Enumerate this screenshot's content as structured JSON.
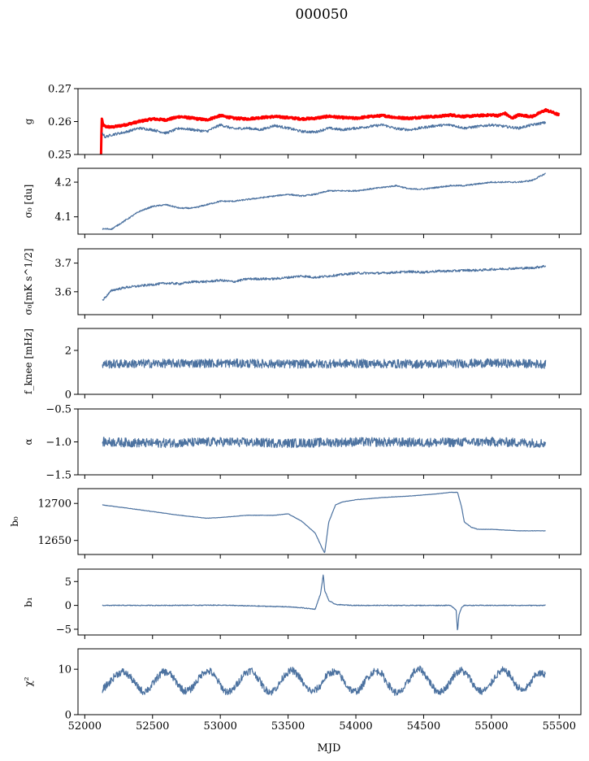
{
  "chart_data": {
    "title": "000050",
    "xlabel": "MJD",
    "xlim": [
      51950,
      55660
    ],
    "xticks": [
      52000,
      52500,
      53000,
      53500,
      54000,
      54500,
      55000,
      55500
    ],
    "xtick_labels": [
      "52000",
      "52500",
      "53000",
      "53500",
      "54000",
      "54500",
      "55000",
      "55500"
    ],
    "grid": false,
    "line_color": "#4c72a0",
    "panels": [
      {
        "type": "line",
        "ylabel": "g",
        "ylim": [
          0.25,
          0.27
        ],
        "yticks": [
          0.25,
          0.26,
          0.27
        ],
        "ytick_labels": [
          "0.25",
          "0.26",
          "0.27"
        ],
        "series": [
          {
            "color": "#ff0000",
            "width": 3,
            "noise": 0.0003,
            "x": [
              52120,
              52125,
              52135,
              52150,
              52200,
              52300,
              52400,
              52500,
              52600,
              52700,
              52800,
              52900,
              53000,
              53100,
              53200,
              53300,
              53400,
              53500,
              53600,
              53700,
              53800,
              53900,
              54000,
              54100,
              54200,
              54300,
              54400,
              54500,
              54600,
              54700,
              54800,
              54900,
              55000,
              55050,
              55100,
              55150,
              55200,
              55300,
              55350,
              55400,
              55450,
              55500
            ],
            "y": [
              0.25,
              0.261,
              0.259,
              0.2585,
              0.2583,
              0.259,
              0.26,
              0.2608,
              0.2605,
              0.2615,
              0.261,
              0.2605,
              0.2618,
              0.261,
              0.2608,
              0.2612,
              0.2615,
              0.2612,
              0.2608,
              0.261,
              0.2616,
              0.2612,
              0.261,
              0.2615,
              0.2618,
              0.2612,
              0.261,
              0.2614,
              0.2615,
              0.262,
              0.2615,
              0.2618,
              0.262,
              0.2618,
              0.2625,
              0.261,
              0.262,
              0.2615,
              0.2625,
              0.2635,
              0.2628,
              0.262
            ]
          },
          {
            "color": "#4c72a0",
            "width": 1.2,
            "noise": 0.0004,
            "x": [
              52130,
              52150,
              52200,
              52300,
              52400,
              52500,
              52600,
              52700,
              52800,
              52900,
              53000,
              53100,
              53200,
              53300,
              53400,
              53500,
              53600,
              53700,
              53800,
              53900,
              54000,
              54100,
              54200,
              54300,
              54400,
              54500,
              54600,
              54700,
              54800,
              54900,
              55000,
              55100,
              55200,
              55300,
              55400
            ],
            "y": [
              0.2565,
              0.2553,
              0.256,
              0.2568,
              0.258,
              0.2575,
              0.2565,
              0.258,
              0.2575,
              0.257,
              0.259,
              0.2578,
              0.258,
              0.2575,
              0.2588,
              0.258,
              0.257,
              0.2568,
              0.258,
              0.2575,
              0.258,
              0.2585,
              0.259,
              0.2578,
              0.2575,
              0.2582,
              0.2588,
              0.259,
              0.258,
              0.2585,
              0.259,
              0.2585,
              0.258,
              0.259,
              0.2597
            ]
          }
        ]
      },
      {
        "type": "line",
        "ylabel": "σ₀ [du]",
        "ylim": [
          4.05,
          4.24
        ],
        "yticks": [
          4.1,
          4.2
        ],
        "ytick_labels": [
          "4.1",
          "4.2"
        ],
        "series": [
          {
            "color": "#4c72a0",
            "width": 1.2,
            "noise": 0.002,
            "x": [
              52130,
              52200,
              52300,
              52400,
              52500,
              52600,
              52700,
              52800,
              52900,
              53000,
              53100,
              53200,
              53300,
              53400,
              53500,
              53600,
              53700,
              53800,
              53900,
              54000,
              54100,
              54200,
              54300,
              54400,
              54500,
              54600,
              54700,
              54800,
              54900,
              55000,
              55100,
              55200,
              55300,
              55350,
              55400
            ],
            "y": [
              4.065,
              4.065,
              4.09,
              4.115,
              4.13,
              4.135,
              4.125,
              4.125,
              4.135,
              4.145,
              4.145,
              4.15,
              4.155,
              4.16,
              4.165,
              4.16,
              4.165,
              4.175,
              4.175,
              4.175,
              4.18,
              4.185,
              4.19,
              4.18,
              4.18,
              4.185,
              4.19,
              4.19,
              4.195,
              4.2,
              4.2,
              4.2,
              4.205,
              4.215,
              4.225
            ]
          }
        ]
      },
      {
        "type": "line",
        "ylabel": "σ₀[mK s^1/2]",
        "ylim": [
          3.52,
          3.75
        ],
        "yticks": [
          3.6,
          3.7
        ],
        "ytick_labels": [
          "3.6",
          "3.7"
        ],
        "series": [
          {
            "color": "#4c72a0",
            "width": 1.2,
            "noise": 0.004,
            "x": [
              52130,
              52200,
              52300,
              52400,
              52500,
              52600,
              52700,
              52800,
              52900,
              53000,
              53100,
              53200,
              53300,
              53400,
              53500,
              53600,
              53700,
              53800,
              53900,
              54000,
              54100,
              54200,
              54300,
              54400,
              54500,
              54600,
              54700,
              54800,
              54900,
              55000,
              55100,
              55200,
              55300,
              55400
            ],
            "y": [
              3.57,
              3.605,
              3.615,
              3.62,
              3.625,
              3.63,
              3.628,
              3.635,
              3.635,
              3.64,
              3.635,
              3.645,
              3.645,
              3.645,
              3.65,
              3.655,
              3.65,
              3.655,
              3.66,
              3.665,
              3.665,
              3.665,
              3.668,
              3.67,
              3.668,
              3.672,
              3.672,
              3.675,
              3.675,
              3.678,
              3.68,
              3.682,
              3.683,
              3.69
            ]
          }
        ]
      },
      {
        "type": "line",
        "ylabel": "f_knee [mHz]",
        "ylim": [
          0,
          3
        ],
        "yticks": [
          0,
          2
        ],
        "ytick_labels": [
          "0",
          "2"
        ],
        "series": [
          {
            "color": "#4c72a0",
            "width": 1.2,
            "noise": 0.2,
            "x": [
              52130,
              52500,
              53000,
              53500,
              54000,
              54500,
              55000,
              55400
            ],
            "y": [
              1.38,
              1.4,
              1.42,
              1.38,
              1.4,
              1.38,
              1.42,
              1.38
            ]
          }
        ]
      },
      {
        "type": "line",
        "ylabel": "α",
        "ylim": [
          -1.5,
          -0.5
        ],
        "yticks": [
          -1.5,
          -1.0,
          -0.5
        ],
        "ytick_labels": [
          "−1.5",
          "−1.0",
          "−0.5"
        ],
        "series": [
          {
            "color": "#4c72a0",
            "width": 1.2,
            "noise": 0.07,
            "x": [
              52130,
              52500,
              53000,
              53500,
              54000,
              54500,
              55000,
              55400
            ],
            "y": [
              -1.0,
              -1.02,
              -1.0,
              -1.02,
              -1.0,
              -1.01,
              -1.0,
              -1.02
            ]
          }
        ]
      },
      {
        "type": "line",
        "ylabel": "b₀",
        "ylim": [
          12631,
          12720
        ],
        "yticks": [
          12650,
          12700
        ],
        "ytick_labels": [
          "12650",
          "12700"
        ],
        "series": [
          {
            "color": "#4c72a0",
            "width": 1.2,
            "noise": 0.25,
            "x": [
              52130,
              52300,
              52500,
              52700,
              52900,
              53000,
              53200,
              53300,
              53400,
              53500,
              53600,
              53700,
              53750,
              53770,
              53800,
              53850,
              53900,
              54000,
              54200,
              54400,
              54600,
              54700,
              54750,
              54780,
              54800,
              54850,
              54900,
              55000,
              55100,
              55200,
              55300,
              55400
            ],
            "y": [
              12698,
              12694,
              12689,
              12684,
              12680,
              12681,
              12684,
              12684,
              12684,
              12686,
              12676,
              12660,
              12640,
              12633,
              12675,
              12698,
              12702,
              12705,
              12708,
              12710,
              12713,
              12715,
              12715,
              12695,
              12675,
              12668,
              12665,
              12665,
              12664,
              12663,
              12663,
              12663
            ]
          }
        ]
      },
      {
        "type": "line",
        "ylabel": "b₁",
        "ylim": [
          -6.2,
          7.6
        ],
        "yticks": [
          -5,
          0,
          5
        ],
        "ytick_labels": [
          "−5",
          "0",
          "5"
        ],
        "series": [
          {
            "color": "#4c72a0",
            "width": 1.2,
            "noise": 0.08,
            "x": [
              52130,
              52500,
              53000,
              53500,
              53600,
              53700,
              53740,
              53760,
              53770,
              53780,
              53800,
              53850,
              53900,
              54000,
              54500,
              54700,
              54740,
              54750,
              54760,
              54780,
              54800,
              55000,
              55400
            ],
            "y": [
              0,
              0,
              0.05,
              -0.3,
              -0.5,
              -0.8,
              2.5,
              6.5,
              3.0,
              2.5,
              1.0,
              0.2,
              0.1,
              0,
              0,
              0,
              -1.0,
              -5.5,
              -2.0,
              -0.5,
              0,
              0,
              0
            ]
          }
        ]
      },
      {
        "type": "line",
        "ylabel": "χ²",
        "ylim": [
          0,
          14.5
        ],
        "yticks": [
          0,
          10
        ],
        "ytick_labels": [
          "0",
          "10"
        ],
        "series": [
          {
            "color": "#4c72a0",
            "width": 1.2,
            "noise": 0.8,
            "x": [
              52130,
              52180,
              52230,
              52280,
              52330,
              52380,
              52430,
              52480,
              52530,
              52580,
              52630,
              52680,
              52730,
              52780,
              52830,
              52880,
              52930,
              52980,
              53030,
              53080,
              53130,
              53180,
              53230,
              53280,
              53330,
              53380,
              53430,
              53480,
              53530,
              53580,
              53630,
              53680,
              53730,
              53780,
              53830,
              53880,
              53930,
              53980,
              54030,
              54080,
              54130,
              54180,
              54230,
              54280,
              54330,
              54380,
              54430,
              54480,
              54530,
              54580,
              54630,
              54680,
              54730,
              54780,
              54830,
              54880,
              54930,
              54980,
              55030,
              55080,
              55130,
              55180,
              55230,
              55280,
              55330,
              55400
            ],
            "y": [
              5.5,
              7.0,
              8.8,
              9.5,
              8.5,
              6.5,
              5.0,
              5.8,
              8.0,
              9.5,
              9.0,
              7.0,
              5.2,
              5.5,
              7.5,
              9.5,
              9.5,
              7.5,
              5.2,
              5.0,
              7.0,
              9.2,
              9.8,
              8.0,
              5.5,
              5.0,
              6.5,
              9.0,
              9.8,
              8.5,
              6.0,
              5.0,
              6.0,
              8.5,
              9.5,
              8.8,
              6.5,
              5.0,
              5.5,
              8.0,
              9.5,
              9.5,
              7.0,
              5.0,
              4.8,
              7.0,
              9.5,
              10.0,
              8.0,
              5.5,
              5.0,
              6.5,
              9.0,
              9.8,
              8.5,
              6.0,
              5.0,
              6.0,
              8.5,
              9.8,
              9.0,
              6.5,
              5.2,
              6.5,
              9.0,
              9.0
            ]
          }
        ]
      }
    ]
  }
}
